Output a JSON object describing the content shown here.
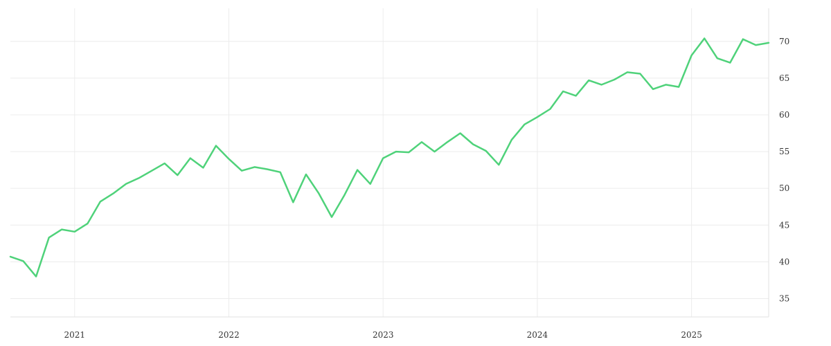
{
  "chart_data": {
    "type": "line",
    "title": "",
    "xlabel": "",
    "ylabel": "",
    "y_axis_side": "right",
    "grid": true,
    "legend": "none",
    "xlim": [
      "2020-08",
      "2025-07"
    ],
    "ylim": [
      32.5,
      74.5
    ],
    "x_ticks": [
      {
        "date": "2021-01",
        "label": "2021"
      },
      {
        "date": "2022-01",
        "label": "2022"
      },
      {
        "date": "2023-01",
        "label": "2023"
      },
      {
        "date": "2024-01",
        "label": "2024"
      },
      {
        "date": "2025-01",
        "label": "2025"
      }
    ],
    "y_ticks": [
      35,
      40,
      45,
      50,
      55,
      60,
      65,
      70
    ],
    "series": [
      {
        "color": "#4fd27a",
        "x": [
          "2020-08",
          "2020-09",
          "2020-10",
          "2020-11",
          "2020-12",
          "2021-01",
          "2021-02",
          "2021-03",
          "2021-04",
          "2021-05",
          "2021-06",
          "2021-07",
          "2021-08",
          "2021-09",
          "2021-10",
          "2021-11",
          "2021-12",
          "2022-01",
          "2022-02",
          "2022-03",
          "2022-04",
          "2022-05",
          "2022-06",
          "2022-07",
          "2022-08",
          "2022-09",
          "2022-10",
          "2022-11",
          "2022-12",
          "2023-01",
          "2023-02",
          "2023-03",
          "2023-04",
          "2023-05",
          "2023-06",
          "2023-07",
          "2023-08",
          "2023-09",
          "2023-10",
          "2023-11",
          "2023-12",
          "2024-01",
          "2024-02",
          "2024-03",
          "2024-04",
          "2024-05",
          "2024-06",
          "2024-07",
          "2024-08",
          "2024-09",
          "2024-10",
          "2024-11",
          "2024-12",
          "2025-01",
          "2025-02",
          "2025-03",
          "2025-04",
          "2025-05",
          "2025-06",
          "2025-07"
        ],
        "values": [
          40.7,
          40.1,
          38.0,
          43.3,
          44.4,
          44.1,
          45.2,
          48.2,
          49.3,
          50.6,
          51.4,
          52.4,
          53.4,
          51.8,
          54.1,
          52.8,
          55.8,
          54.0,
          52.4,
          52.9,
          52.6,
          52.2,
          48.1,
          51.9,
          49.3,
          46.1,
          49.1,
          52.5,
          50.6,
          54.1,
          55.0,
          54.9,
          56.3,
          55.0,
          56.3,
          57.5,
          56.0,
          55.1,
          53.2,
          56.6,
          58.7,
          59.7,
          60.8,
          63.2,
          62.6,
          64.7,
          64.1,
          64.8,
          65.8,
          65.6,
          63.5,
          64.1,
          63.8,
          68.1,
          70.4,
          67.7,
          67.1,
          70.3,
          69.5,
          69.8
        ]
      }
    ]
  }
}
